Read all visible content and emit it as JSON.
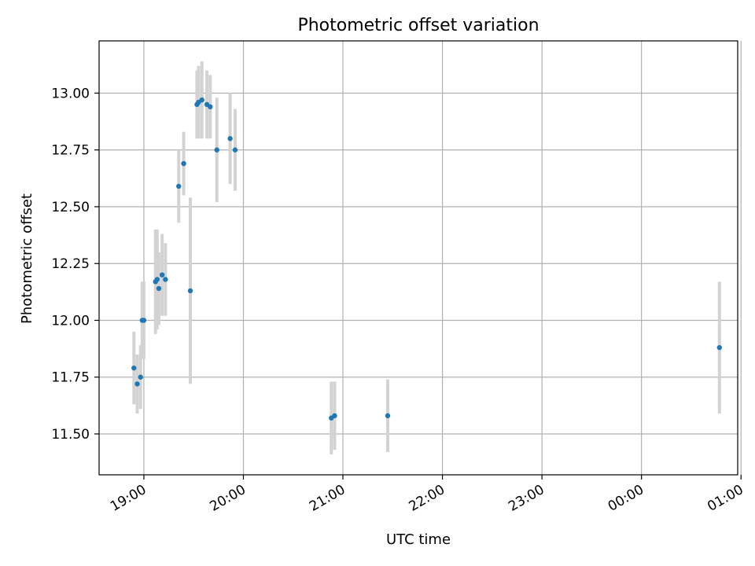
{
  "chart_data": {
    "type": "scatter",
    "title": "Photometric offset variation",
    "xlabel": "UTC time",
    "ylabel": "Photometric offset",
    "x_ticks": [
      "19:00",
      "20:00",
      "21:00",
      "22:00",
      "23:00",
      "00:00",
      "01:00"
    ],
    "y_ticks": [
      "11.50",
      "11.75",
      "12.00",
      "12.25",
      "12.50",
      "12.75",
      "13.00"
    ],
    "x_tick_times": [
      "19:00",
      "20:00",
      "21:00",
      "22:00",
      "23:00",
      "00:00",
      "01:00"
    ],
    "y_tick_values": [
      11.5,
      11.75,
      12.0,
      12.25,
      12.5,
      12.75,
      13.0
    ],
    "xlim": [
      "18:33",
      "00:58"
    ],
    "ylim": [
      11.32,
      13.23
    ],
    "grid": true,
    "marker_color": "#1f77b4",
    "errorbar_color": "#d3d3d3",
    "points": [
      {
        "t": "18:54",
        "y": 11.79,
        "err": 0.16
      },
      {
        "t": "18:56",
        "y": 11.72,
        "err": 0.13
      },
      {
        "t": "18:58",
        "y": 11.75,
        "err": 0.14
      },
      {
        "t": "18:59",
        "y": 12.0,
        "err": 0.17
      },
      {
        "t": "19:00",
        "y": 12.0,
        "err": 0.17
      },
      {
        "t": "19:07",
        "y": 12.17,
        "err": 0.23
      },
      {
        "t": "19:08",
        "y": 12.18,
        "err": 0.22
      },
      {
        "t": "19:09",
        "y": 12.14,
        "err": 0.16
      },
      {
        "t": "19:11",
        "y": 12.2,
        "err": 0.18
      },
      {
        "t": "19:13",
        "y": 12.18,
        "err": 0.16
      },
      {
        "t": "19:21",
        "y": 12.59,
        "err": 0.16
      },
      {
        "t": "19:24",
        "y": 12.69,
        "err": 0.14
      },
      {
        "t": "19:28",
        "y": 12.13,
        "err": 0.41
      },
      {
        "t": "19:32",
        "y": 12.95,
        "err": 0.15
      },
      {
        "t": "19:33",
        "y": 12.96,
        "err": 0.16
      },
      {
        "t": "19:35",
        "y": 12.97,
        "err": 0.17
      },
      {
        "t": "19:38",
        "y": 12.95,
        "err": 0.15
      },
      {
        "t": "19:40",
        "y": 12.94,
        "err": 0.14
      },
      {
        "t": "19:44",
        "y": 12.75,
        "err": 0.23
      },
      {
        "t": "19:52",
        "y": 12.8,
        "err": 0.2
      },
      {
        "t": "19:55",
        "y": 12.75,
        "err": 0.18
      },
      {
        "t": "20:53",
        "y": 11.57,
        "err": 0.16
      },
      {
        "t": "20:55",
        "y": 11.58,
        "err": 0.15
      },
      {
        "t": "21:27",
        "y": 11.58,
        "err": 0.16
      },
      {
        "t": "00:47",
        "y": 11.88,
        "err": 0.29
      }
    ]
  }
}
